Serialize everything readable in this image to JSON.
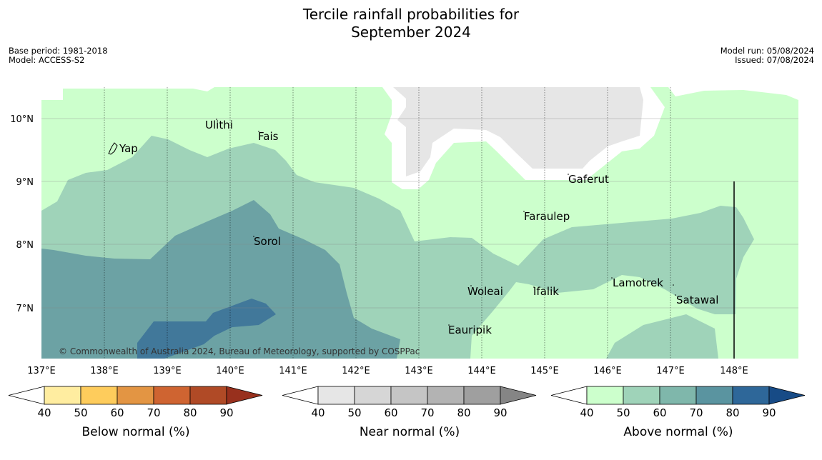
{
  "title": {
    "line1": "Tercile rainfall probabilities for",
    "line2": "September 2024"
  },
  "meta": {
    "base_period": "Base period: 1981-2018",
    "model": "Model: ACCESS-S2",
    "model_run": "Model run: 05/08/2024",
    "issued": "Issued: 07/08/2024"
  },
  "copyright": "© Commonwealth of Australia 2024, Bureau of Meteorology, supported by COSPPac",
  "axes": {
    "lat_labels": [
      "10°N",
      "9°N",
      "8°N",
      "7°N"
    ],
    "lon_labels": [
      "137°E",
      "138°E",
      "139°E",
      "140°E",
      "141°E",
      "142°E",
      "143°E",
      "144°E",
      "145°E",
      "146°E",
      "147°E",
      "148°E"
    ]
  },
  "places": {
    "yap": "Yap",
    "ulithi": "Ulithi",
    "fais": "Fais",
    "gaferut": "Gaferut",
    "faraulep": "Faraulep",
    "sorol": "Sorol",
    "woleai": "Woleai",
    "ifalik": "Ifalik",
    "lamotrek": "Lamotrek",
    "satawal": "Satawal",
    "eauripik": "Eauripik"
  },
  "colorbars": {
    "below": {
      "label": "Below normal (%)",
      "ticks": [
        "40",
        "50",
        "60",
        "70",
        "80",
        "90"
      ],
      "colors": [
        "#ffffff",
        "#ffeda0",
        "#fecc5c",
        "#e39543",
        "#cf6431",
        "#b04a26",
        "#98301d"
      ]
    },
    "near": {
      "label": "Near normal (%)",
      "ticks": [
        "40",
        "50",
        "60",
        "70",
        "80",
        "90"
      ],
      "colors": [
        "#ffffff",
        "#e6e6e6",
        "#d6d6d6",
        "#c5c5c5",
        "#b3b3b3",
        "#9f9f9f",
        "#858585"
      ]
    },
    "above": {
      "label": "Above normal (%)",
      "ticks": [
        "40",
        "50",
        "60",
        "70",
        "80",
        "90"
      ],
      "colors": [
        "#ffffff",
        "#ccffcc",
        "#9fd3b9",
        "#7fb7ab",
        "#5a94a0",
        "#2e6799",
        "#174b86"
      ]
    }
  }
}
